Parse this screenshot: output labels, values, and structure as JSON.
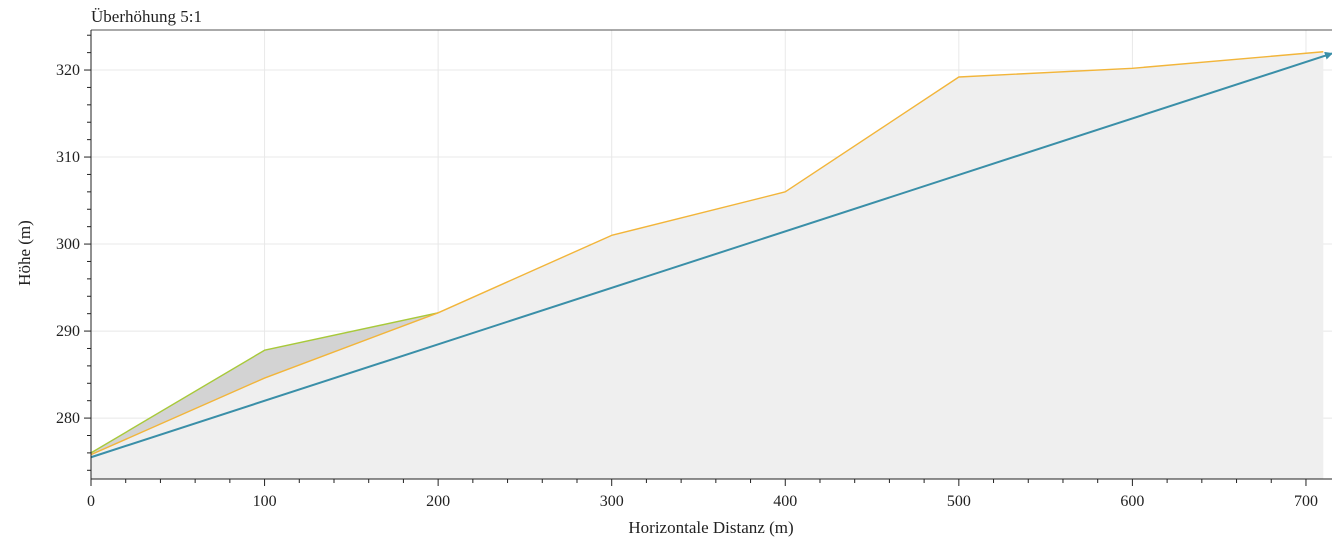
{
  "chart_data": {
    "type": "line",
    "title": "Überhöhung 5:1",
    "xlabel": "Horizontale Distanz (m)",
    "ylabel": "Höhe (m)",
    "xlim": [
      0,
      715
    ],
    "ylim": [
      273,
      324.6
    ],
    "x_ticks": [
      0,
      100,
      200,
      300,
      400,
      500,
      600,
      700
    ],
    "y_ticks": [
      280,
      290,
      300,
      310,
      320
    ],
    "grid": true,
    "series": [
      {
        "color": "#a8c93a",
        "fill_to": "yellow_line",
        "fill_color": "#d3d3d3",
        "points": [
          [
            0,
            276.0
          ],
          [
            100,
            287.8
          ],
          [
            200,
            292.1
          ]
        ]
      },
      {
        "color": "#f2b53a",
        "points": [
          [
            0,
            275.8
          ],
          [
            100,
            284.6
          ],
          [
            200,
            292.1
          ],
          [
            300,
            301.0
          ],
          [
            400,
            306.0
          ],
          [
            500,
            319.2
          ],
          [
            600,
            320.2
          ],
          [
            710,
            322.1
          ]
        ]
      },
      {
        "color": "#3a8fa8",
        "arrow": true,
        "points": [
          [
            0,
            275.5
          ],
          [
            715,
            321.9
          ]
        ]
      }
    ],
    "background_fill": {
      "from_series": 1,
      "to": "bottom",
      "color": "#efefef"
    }
  }
}
